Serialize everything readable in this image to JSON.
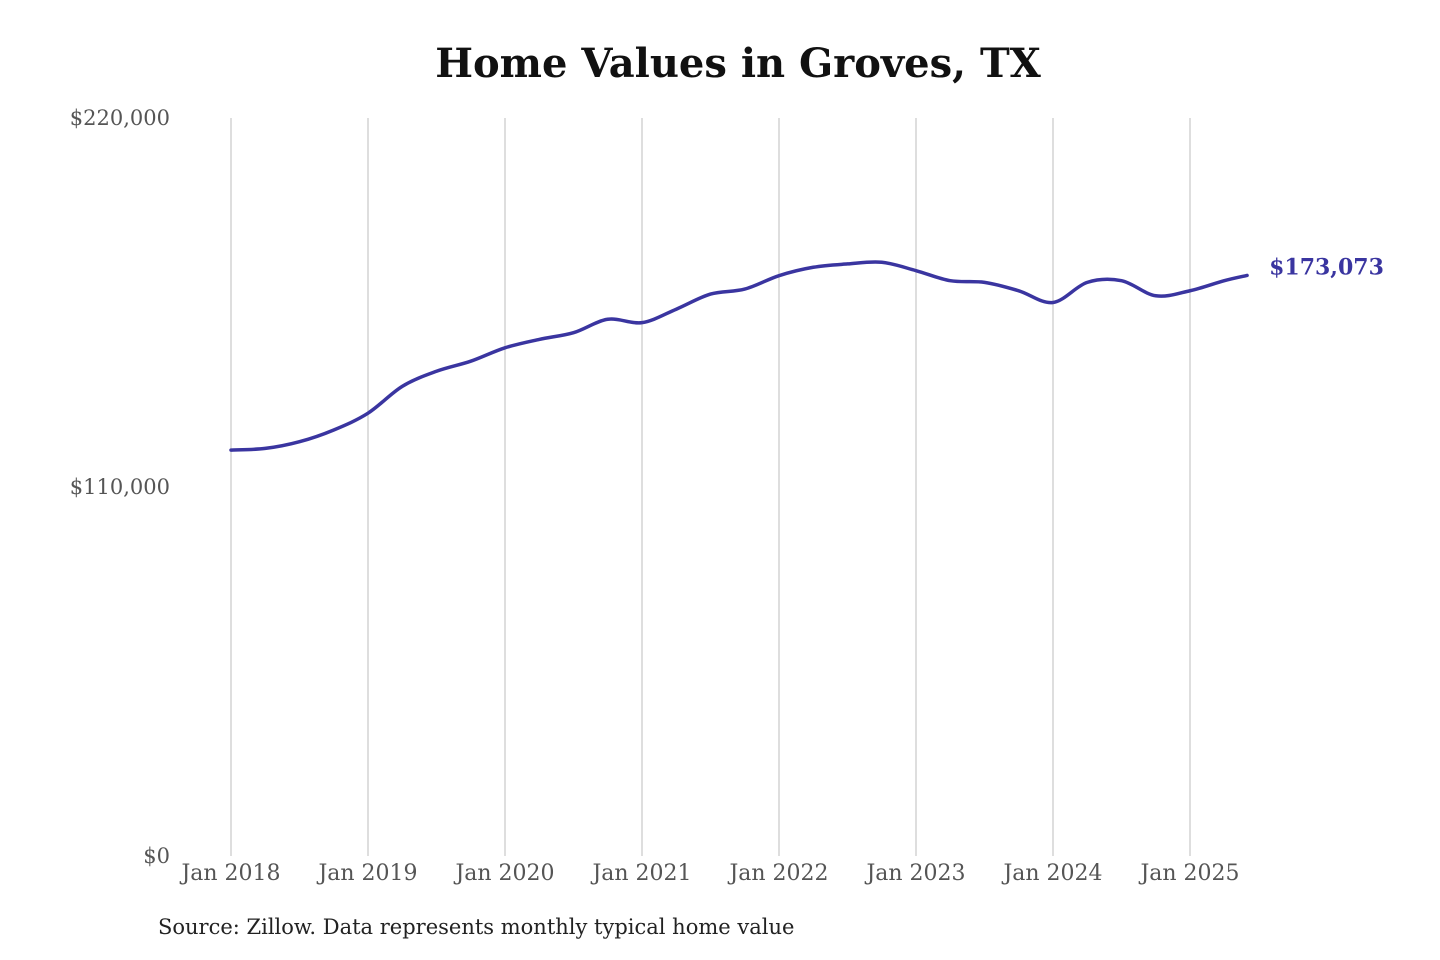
{
  "chart_data": {
    "type": "line",
    "title": "Home Values in Groves, TX",
    "xlabel": "",
    "ylabel": "",
    "ylim": [
      0,
      220000
    ],
    "yticks": [
      {
        "value": 0,
        "label": "$0"
      },
      {
        "value": 110000,
        "label": "$110,000"
      },
      {
        "value": 220000,
        "label": "$220,000"
      }
    ],
    "xticks": [
      {
        "value": "2018-01",
        "label": "Jan 2018"
      },
      {
        "value": "2019-01",
        "label": "Jan 2019"
      },
      {
        "value": "2020-01",
        "label": "Jan 2020"
      },
      {
        "value": "2021-01",
        "label": "Jan 2021"
      },
      {
        "value": "2022-01",
        "label": "Jan 2022"
      },
      {
        "value": "2023-01",
        "label": "Jan 2023"
      },
      {
        "value": "2024-01",
        "label": "Jan 2024"
      },
      {
        "value": "2025-01",
        "label": "Jan 2025"
      }
    ],
    "grid": "vertical",
    "color": "#3a35a0",
    "end_label": "$173,073",
    "series": [
      {
        "x": [
          "2018-01",
          "2018-04",
          "2018-07",
          "2018-10",
          "2019-01",
          "2019-04",
          "2019-07",
          "2019-10",
          "2020-01",
          "2020-04",
          "2020-07",
          "2020-10",
          "2021-01",
          "2021-04",
          "2021-07",
          "2021-10",
          "2022-01",
          "2022-04",
          "2022-07",
          "2022-10",
          "2023-01",
          "2023-04",
          "2023-07",
          "2023-10",
          "2024-01",
          "2024-04",
          "2024-07",
          "2024-10",
          "2025-01",
          "2025-04",
          "2025-06"
        ],
        "y": [
          121000,
          121500,
          123500,
          127000,
          132000,
          140000,
          144500,
          147500,
          151500,
          154000,
          156000,
          160000,
          159000,
          163000,
          167500,
          169000,
          173000,
          175500,
          176500,
          177000,
          174500,
          171500,
          171000,
          168500,
          165000,
          171000,
          171500,
          167000,
          168500,
          171500,
          173073
        ]
      }
    ]
  },
  "source_note": "Source: Zillow. Data represents monthly typical home value"
}
